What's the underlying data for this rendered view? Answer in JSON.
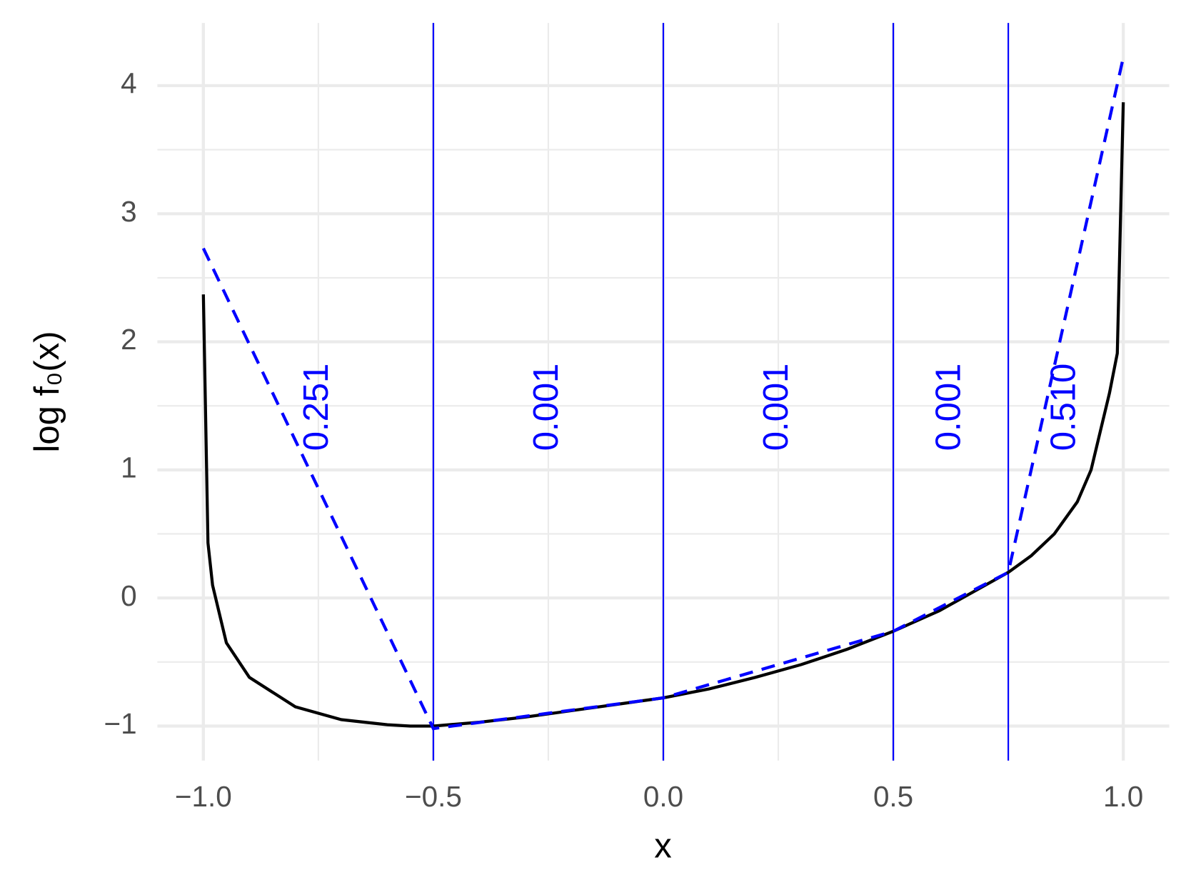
{
  "chart_data": {
    "type": "line",
    "xlabel": "x",
    "ylabel": "log f₀(x)",
    "xlim": [
      -1.1,
      1.1
    ],
    "ylim": [
      -1.27,
      4.49
    ],
    "xticks": [
      {
        "value": -1,
        "label": "−1.0"
      },
      {
        "value": -0.5,
        "label": "−0.5"
      },
      {
        "value": 0,
        "label": "0.0"
      },
      {
        "value": 0.5,
        "label": "0.5"
      },
      {
        "value": 1,
        "label": "1.0"
      }
    ],
    "yticks": [
      {
        "value": -1,
        "label": "−1"
      },
      0,
      1,
      2,
      3,
      4
    ],
    "grid": true,
    "series": [
      {
        "style": "solid",
        "color": "#000000",
        "x": [
          -1,
          -0.99,
          -0.98,
          -0.95,
          -0.9,
          -0.8,
          -0.7,
          -0.6,
          -0.55,
          -0.5,
          -0.4,
          -0.3,
          -0.2,
          -0.1,
          0,
          0.1,
          0.2,
          0.3,
          0.4,
          0.5,
          0.6,
          0.7,
          0.75,
          0.8,
          0.85,
          0.9,
          0.93,
          0.95,
          0.97,
          0.987,
          1
        ],
        "values": [
          2.37,
          0.43,
          0.1,
          -0.35,
          -0.62,
          -0.85,
          -0.95,
          -0.99,
          -1.0,
          -1.0,
          -0.97,
          -0.93,
          -0.88,
          -0.83,
          -0.78,
          -0.71,
          -0.62,
          -0.52,
          -0.4,
          -0.26,
          -0.1,
          0.1,
          0.2,
          0.33,
          0.5,
          0.75,
          1.0,
          1.3,
          1.6,
          1.91,
          3.87
        ]
      },
      {
        "style": "dashed",
        "color": "#0000ff",
        "x": [
          -1,
          -0.5,
          0,
          0.5,
          0.75,
          1
        ],
        "values": [
          2.73,
          -1.02,
          -0.78,
          -0.26,
          0.2,
          4.22
        ]
      }
    ],
    "breaks": [
      -0.5,
      0,
      0.5,
      0.75
    ],
    "break_color": "#0000ff",
    "region_labels": [
      "0.251",
      "0.001",
      "0.001",
      "0.001",
      "0.510"
    ],
    "region_label_y": 1.49
  }
}
